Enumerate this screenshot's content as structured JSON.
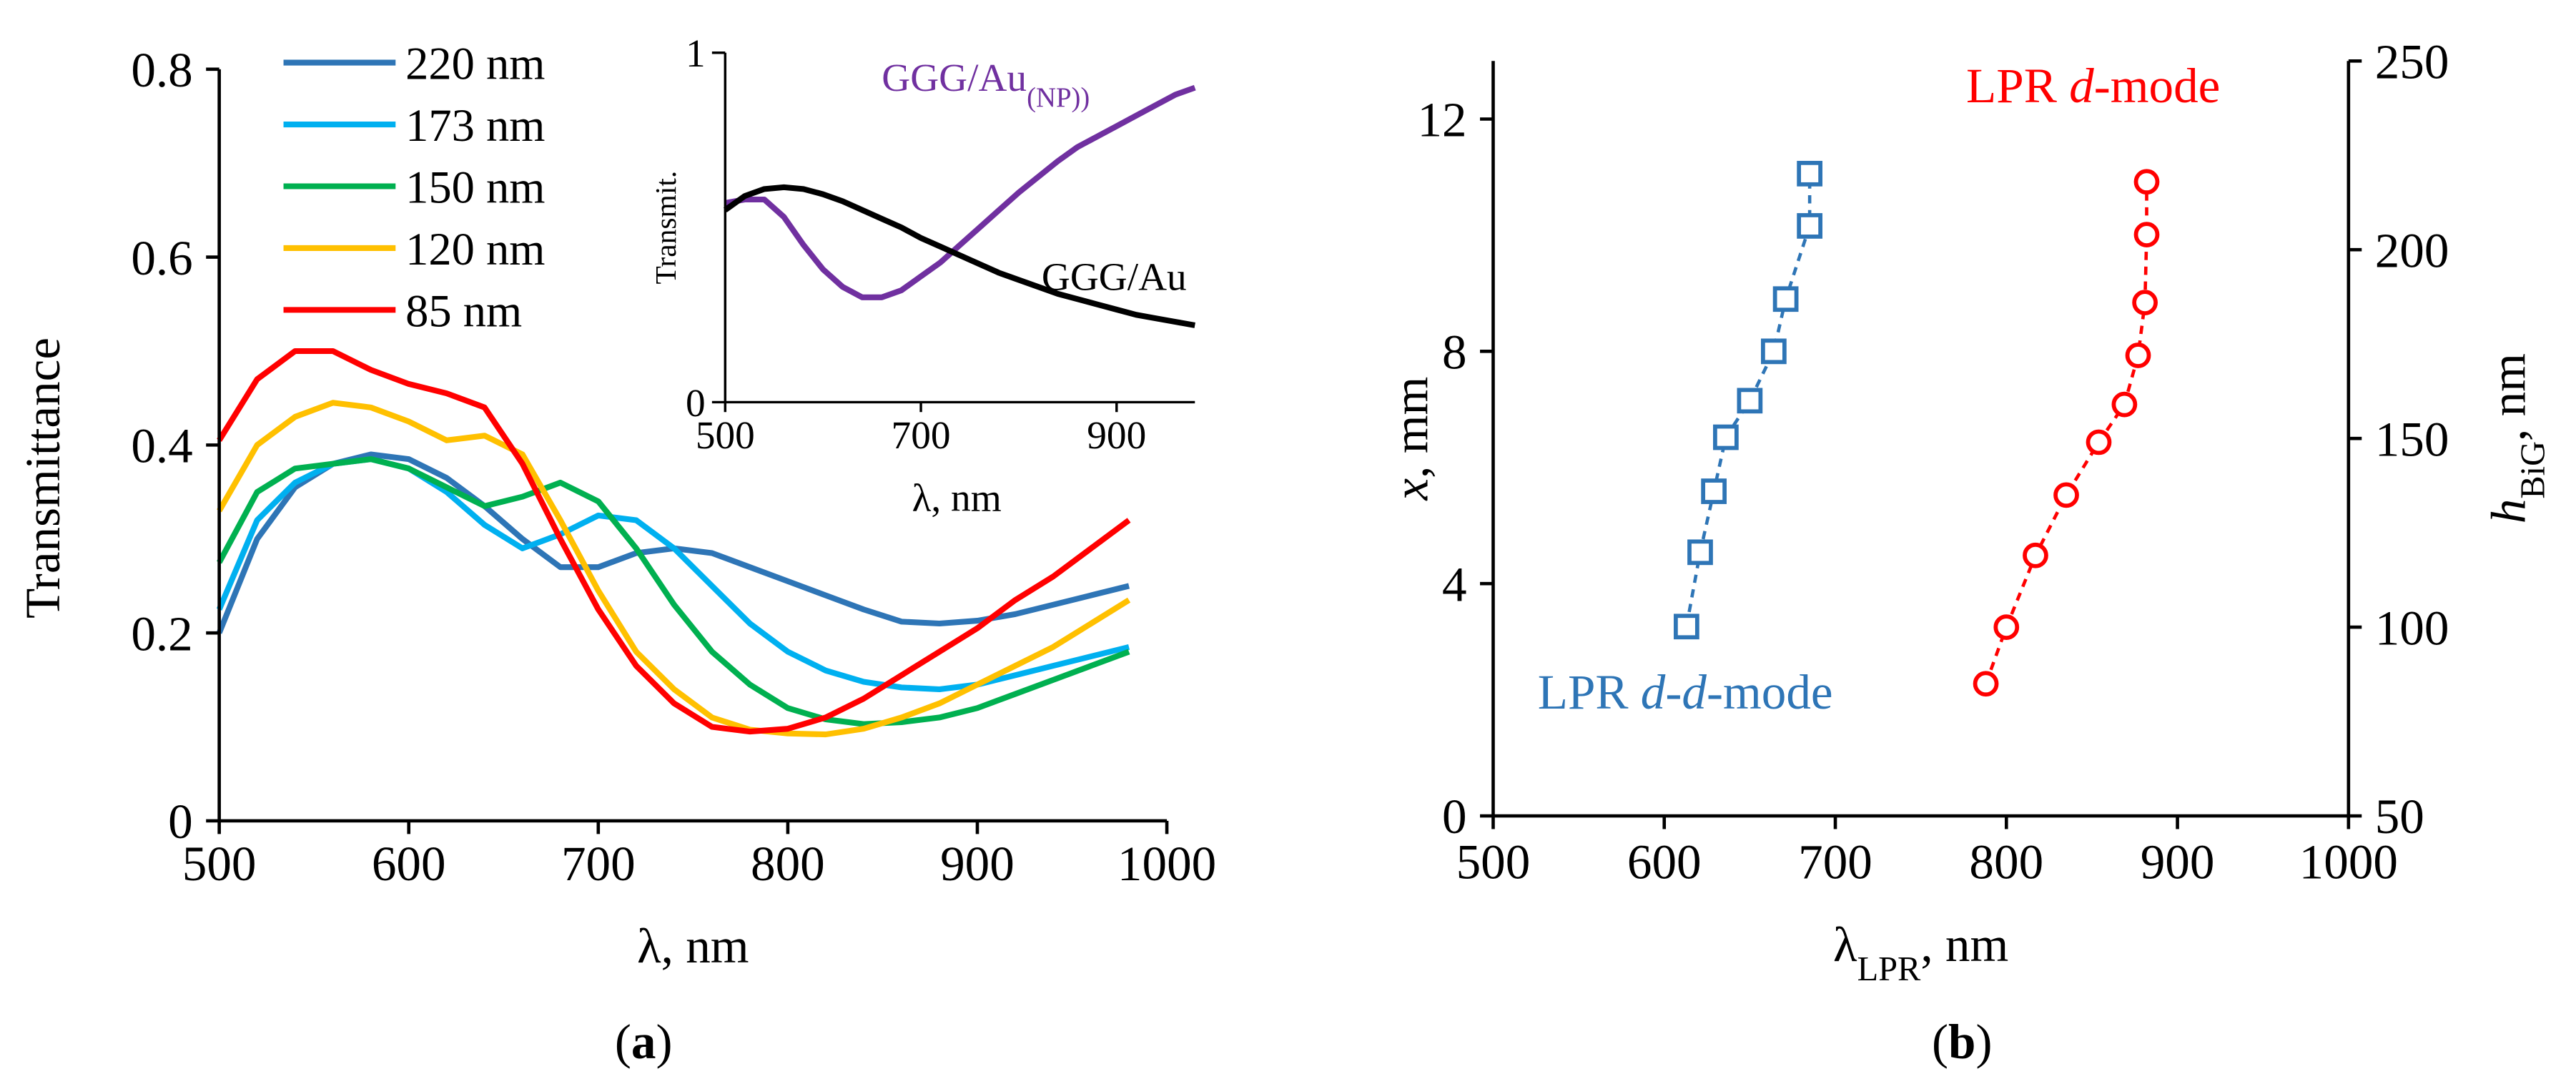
{
  "chart_data": [
    {
      "type": "line",
      "xlabel": "λ, nm",
      "ylabel": "Transmittance",
      "panel_label": [
        "(",
        "a",
        ")"
      ],
      "xlim": [
        500,
        1000
      ],
      "xticks": [
        500,
        600,
        700,
        800,
        900,
        1000
      ],
      "ylim": [
        0,
        0.8
      ],
      "yticks": [
        0,
        0.2,
        0.4,
        0.6,
        0.8
      ],
      "legend": "upper left",
      "x": [
        500,
        520,
        540,
        560,
        580,
        600,
        620,
        640,
        660,
        680,
        700,
        720,
        740,
        760,
        780,
        800,
        820,
        840,
        860,
        880,
        900,
        920,
        940,
        960,
        980
      ],
      "series": [
        {
          "name": "220 nm",
          "color": "#2e75b6",
          "values": [
            0.2,
            0.3,
            0.355,
            0.38,
            0.39,
            0.385,
            0.365,
            0.335,
            0.3,
            0.27,
            0.27,
            0.285,
            0.29,
            0.285,
            0.27,
            0.255,
            0.24,
            0.225,
            0.212,
            0.21,
            0.213,
            0.22,
            0.23,
            0.24,
            0.25
          ]
        },
        {
          "name": "173 nm",
          "color": "#00b0f0",
          "values": [
            0.225,
            0.32,
            0.36,
            0.38,
            0.385,
            0.375,
            0.35,
            0.315,
            0.29,
            0.305,
            0.325,
            0.32,
            0.29,
            0.25,
            0.21,
            0.18,
            0.16,
            0.148,
            0.142,
            0.14,
            0.145,
            0.155,
            0.165,
            0.175,
            0.185
          ]
        },
        {
          "name": "150 nm",
          "color": "#00b050",
          "values": [
            0.275,
            0.35,
            0.375,
            0.38,
            0.385,
            0.375,
            0.355,
            0.335,
            0.345,
            0.36,
            0.34,
            0.29,
            0.23,
            0.18,
            0.145,
            0.12,
            0.108,
            0.103,
            0.105,
            0.11,
            0.12,
            0.135,
            0.15,
            0.165,
            0.18
          ]
        },
        {
          "name": "120 nm",
          "color": "#ffc000",
          "values": [
            0.33,
            0.4,
            0.43,
            0.445,
            0.44,
            0.425,
            0.405,
            0.41,
            0.39,
            0.32,
            0.245,
            0.18,
            0.14,
            0.11,
            0.097,
            0.093,
            0.092,
            0.098,
            0.11,
            0.125,
            0.145,
            0.165,
            0.185,
            0.21,
            0.235
          ]
        },
        {
          "name": "85 nm",
          "color": "#ff0000",
          "values": [
            0.405,
            0.47,
            0.5,
            0.5,
            0.48,
            0.465,
            0.455,
            0.44,
            0.38,
            0.3,
            0.225,
            0.165,
            0.125,
            0.1,
            0.095,
            0.098,
            0.11,
            0.13,
            0.155,
            0.18,
            0.205,
            0.235,
            0.26,
            0.29,
            0.32
          ]
        }
      ]
    },
    {
      "type": "line",
      "xlabel": "λ, nm",
      "ylabel": "Transmit.",
      "xlim": [
        500,
        980
      ],
      "xticks": [
        500,
        700,
        900
      ],
      "ylim": [
        0,
        1
      ],
      "yticks": [
        0,
        1
      ],
      "x": [
        500,
        520,
        540,
        560,
        580,
        600,
        620,
        640,
        660,
        680,
        700,
        720,
        740,
        760,
        780,
        800,
        820,
        840,
        860,
        880,
        900,
        920,
        940,
        960,
        980
      ],
      "series": [
        {
          "label": [
            "GGG/Au",
            "(NP))"
          ],
          "color": "#7030a0",
          "values": [
            0.57,
            0.58,
            0.58,
            0.53,
            0.45,
            0.38,
            0.33,
            0.3,
            0.3,
            0.32,
            0.36,
            0.4,
            0.45,
            0.5,
            0.55,
            0.6,
            0.645,
            0.69,
            0.73,
            0.76,
            0.79,
            0.82,
            0.85,
            0.88,
            0.9
          ]
        },
        {
          "label": [
            "GGG/Au"
          ],
          "color": "#000000",
          "values": [
            0.55,
            0.59,
            0.61,
            0.615,
            0.61,
            0.595,
            0.575,
            0.55,
            0.525,
            0.5,
            0.47,
            0.445,
            0.42,
            0.395,
            0.37,
            0.35,
            0.33,
            0.31,
            0.295,
            0.28,
            0.265,
            0.25,
            0.24,
            0.23,
            0.22
          ]
        }
      ]
    },
    {
      "type": "scatter",
      "xlabel": [
        "λ",
        "LPR",
        ", nm"
      ],
      "ylabel": [
        "x",
        ", mm"
      ],
      "y2label": [
        "h",
        "BiG",
        ", nm"
      ],
      "panel_label": [
        "(",
        "b",
        ")"
      ],
      "xlim": [
        500,
        1000
      ],
      "xticks": [
        500,
        600,
        700,
        800,
        900,
        1000
      ],
      "ylim": [
        0,
        13
      ],
      "yticks": [
        0,
        4,
        8,
        12
      ],
      "y2lim": [
        50,
        250
      ],
      "y2ticks": [
        50,
        100,
        150,
        200,
        250
      ],
      "annotations": [
        {
          "text": [
            "LPR ",
            "d",
            "-mode"
          ],
          "color": "#ff0000"
        },
        {
          "text": [
            "LPR ",
            "d",
            "-",
            "d",
            "-mode"
          ],
          "color": "#2e75b6"
        }
      ],
      "series": [
        {
          "color": "#2e75b6",
          "marker": "square",
          "x": [
            613,
            621,
            629,
            636,
            650,
            664,
            671,
            685,
            685
          ],
          "values": [
            3.26,
            4.54,
            5.59,
            6.52,
            7.15,
            8.0,
            8.9,
            10.16,
            11.06
          ]
        },
        {
          "color": "#ff0000",
          "marker": "circle",
          "axis": "y2",
          "x": [
            788,
            800,
            817,
            835,
            854,
            869,
            877,
            881,
            882,
            882
          ],
          "values": [
            85,
            100,
            119,
            135,
            149,
            159,
            172,
            186,
            204,
            218
          ]
        }
      ]
    }
  ]
}
